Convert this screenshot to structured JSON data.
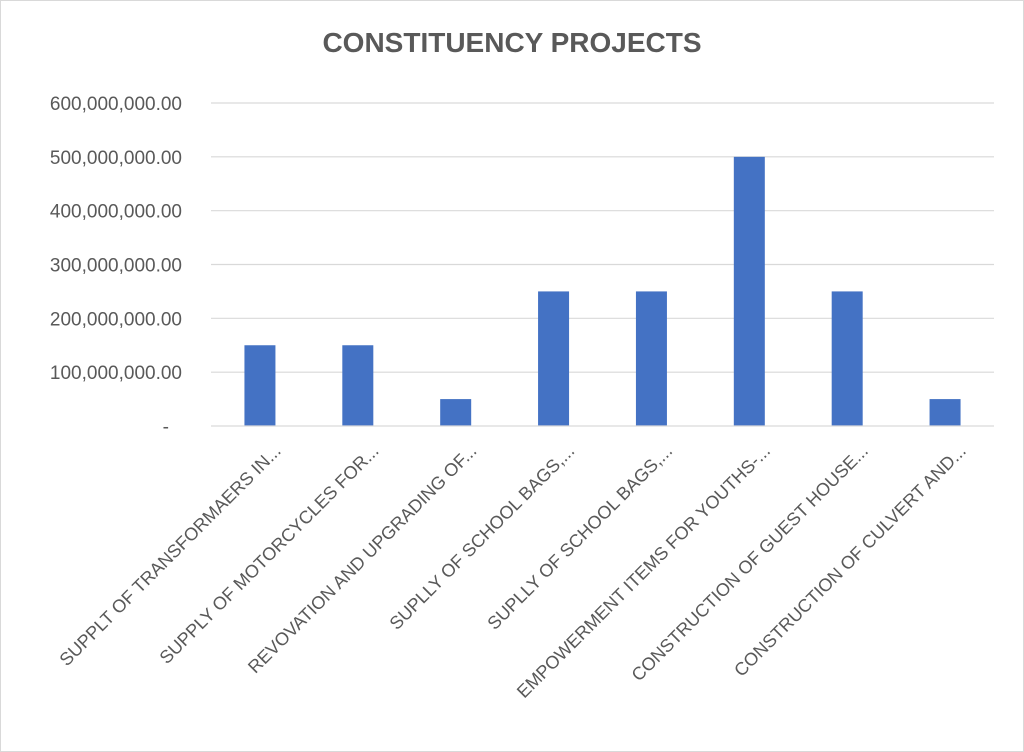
{
  "chart_data": {
    "type": "bar",
    "title": "CONSTITUENCY PROJECTS",
    "categories": [
      "SUPPLT OF TRANSFORMAERS IN...",
      "SUPPLY OF MOTORCYCLES FOR...",
      "REVOVATION AND UPGRADING OF...",
      "SUPLLY OF SCHOOL BAGS,...",
      "SUPLLY OF SCHOOL BAGS,...",
      "EMPOWERMENT ITEMS FOR YOUTHS-...",
      "CONSTRUCTION OF GUEST HOUSE...",
      "CONSTRUCTION OF CULVERT AND..."
    ],
    "values": [
      150000000,
      150000000,
      50000000,
      250000000,
      250000000,
      500000000,
      250000000,
      50000000
    ],
    "ylim": [
      0,
      600000000
    ],
    "yticks": [
      0,
      100000000,
      200000000,
      300000000,
      400000000,
      500000000,
      600000000
    ],
    "ytick_labels": [
      "-",
      "100,000,000.00",
      "200,000,000.00",
      "300,000,000.00",
      "400,000,000.00",
      "500,000,000.00",
      "600,000,000.00"
    ],
    "grid": true,
    "bar_color": "#4472c4"
  }
}
